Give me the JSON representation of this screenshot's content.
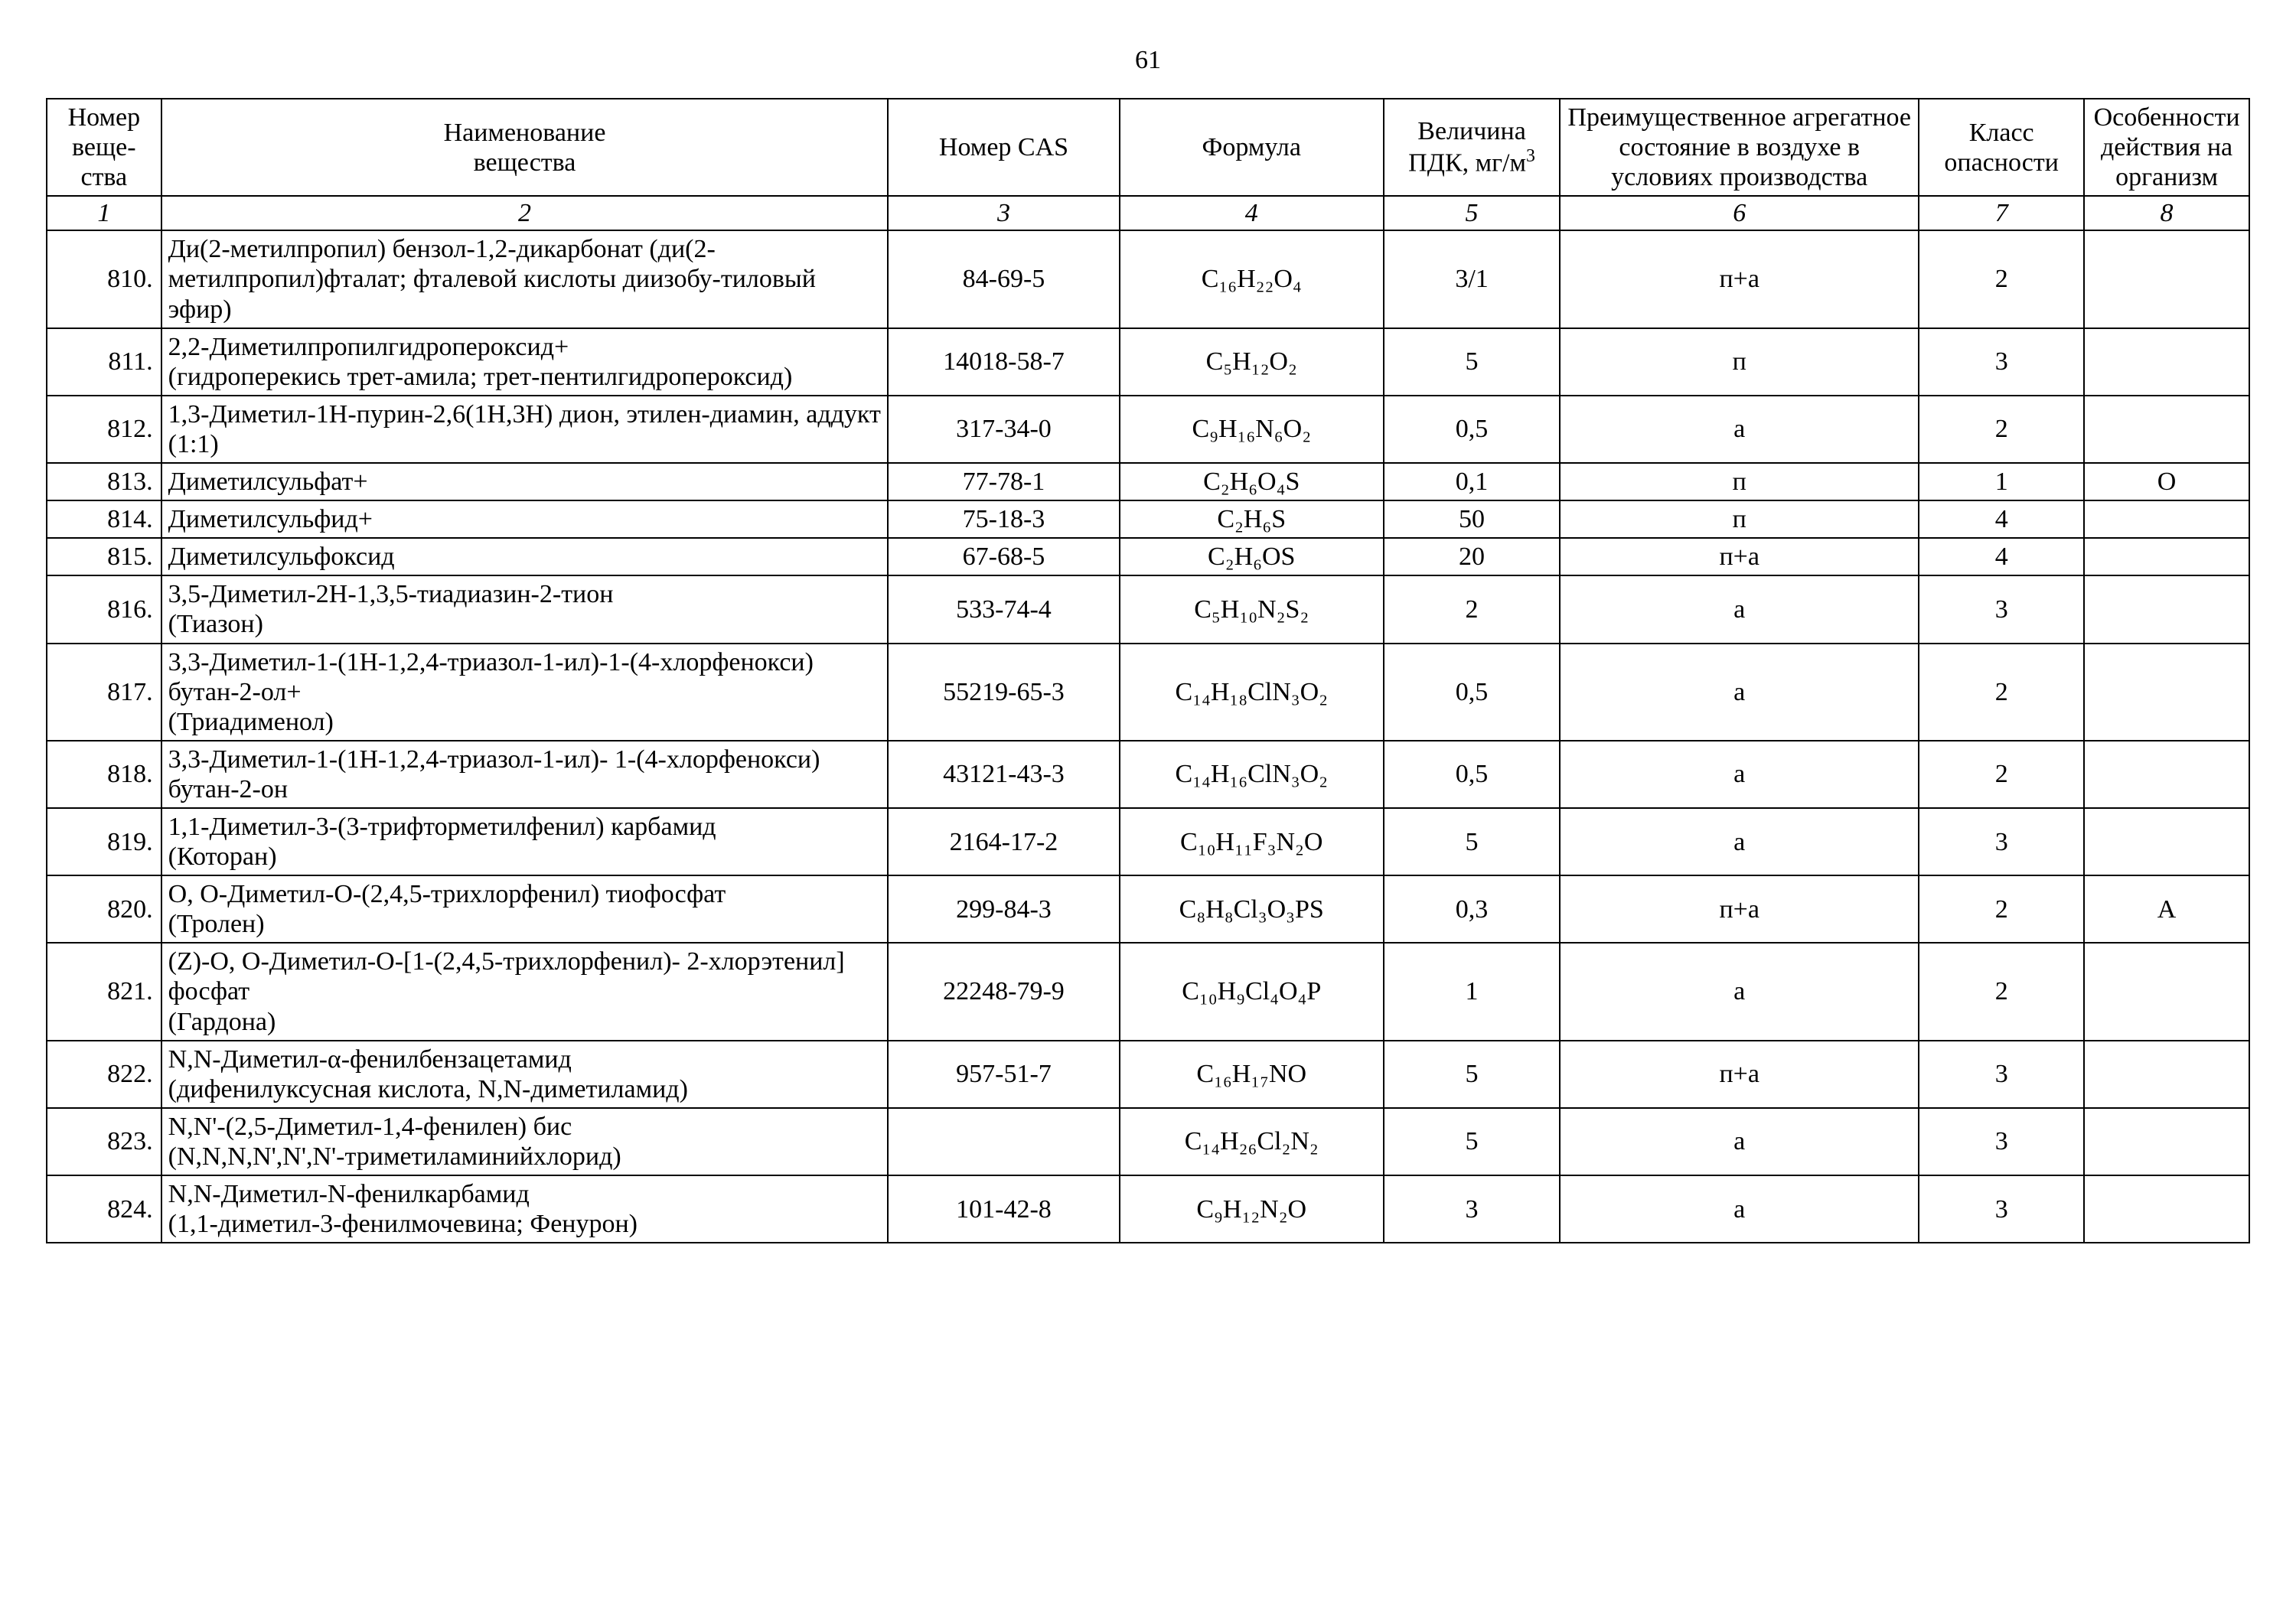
{
  "page_number": "61",
  "table": {
    "col_widths_pct": [
      5.2,
      33.0,
      10.5,
      12.0,
      8.0,
      16.3,
      7.5,
      7.5
    ],
    "headers": [
      "Номер веще-ства",
      "Наименование\nвещества",
      "Номер CAS",
      "Формула",
      "Величина ПДК, мг/м³",
      "Преимущественное агрегатное состояние в воздухе в условиях производства",
      "Класс опасности",
      "Особенности действия на организм"
    ],
    "header_fontsize_pt": 26,
    "cell_fontsize_pt": 26,
    "border_color": "#000000",
    "background_color": "#ffffff",
    "colnum_row": [
      "1",
      "2",
      "3",
      "4",
      "5",
      "6",
      "7",
      "8"
    ],
    "rows": [
      {
        "num": "810.",
        "name": "Ди(2-метилпропил) бензол-1,2-дикарбонат  (ди(2-метилпропил)фталат; фталевой кислоты  диизобу-тиловый эфир)",
        "cas": "84-69-5",
        "formula": "C₁₆H₂₂O₄",
        "pdk": "3/1",
        "state": "п+а",
        "hazard": "2",
        "effect": ""
      },
      {
        "num": "811.",
        "name": "2,2-Диметилпропилгидропероксид+\n(гидроперекись трет-амила; трет-пентилгидропероксид)",
        "cas": "14018-58-7",
        "formula": "C₅H₁₂O₂",
        "pdk": "5",
        "state": "п",
        "hazard": "3",
        "effect": ""
      },
      {
        "num": "812.",
        "name": "1,3-Диметил-1Н-пурин-2,6(1Н,3Н) дион, этилен-диамин, аддукт (1:1)",
        "cas": "317-34-0",
        "formula": "C₉H₁₆N₆O₂",
        "pdk": "0,5",
        "state": "а",
        "hazard": "2",
        "effect": ""
      },
      {
        "num": "813.",
        "name": "Диметилсульфат+",
        "cas": "77-78-1",
        "formula": "C₂H₆O₄S",
        "pdk": "0,1",
        "state": "п",
        "hazard": "1",
        "effect": "О"
      },
      {
        "num": "814.",
        "name": "Диметилсульфид+",
        "cas": "75-18-3",
        "formula": "C₂H₆S",
        "pdk": "50",
        "state": "п",
        "hazard": "4",
        "effect": ""
      },
      {
        "num": "815.",
        "name": "Диметилсульфоксид",
        "cas": "67-68-5",
        "formula": "C₂H₆OS",
        "pdk": "20",
        "state": "п+а",
        "hazard": "4",
        "effect": ""
      },
      {
        "num": "816.",
        "name": "3,5-Диметил-2Н-1,3,5-тиадиазин-2-тион\n(Тиазон)",
        "cas": "533-74-4",
        "formula": "C₅H₁₀N₂S₂",
        "pdk": "2",
        "state": "а",
        "hazard": "3",
        "effect": ""
      },
      {
        "num": "817.",
        "name": "3,3-Диметил-1-(1Н-1,2,4-триазол-1-ил)-1-(4-хлорфенокси) бутан-2-ол+\n(Триадименол)",
        "cas": "55219-65-3",
        "formula": "C₁₄H₁₈ClN₃O₂",
        "pdk": "0,5",
        "state": "а",
        "hazard": "2",
        "effect": ""
      },
      {
        "num": "818.",
        "name": "3,3-Диметил-1-(1Н-1,2,4-триазол-1-ил)- 1-(4-хлорфенокси) бутан-2-он",
        "cas": "43121-43-3",
        "formula": "C₁₄H₁₆ClN₃O₂",
        "pdk": "0,5",
        "state": "а",
        "hazard": "2",
        "effect": ""
      },
      {
        "num": "819.",
        "name": "1,1-Диметил-3-(3-трифторметилфенил) карбамид\n(Которан)",
        "cas": "2164-17-2",
        "formula": "C₁₀H₁₁F₃N₂O",
        "pdk": "5",
        "state": "а",
        "hazard": "3",
        "effect": ""
      },
      {
        "num": "820.",
        "name": "О, О-Диметил-О-(2,4,5-трихлорфенил) тиофосфат\n(Тролен)",
        "cas": "299-84-3",
        "formula": "C₈H₈Cl₃O₃PS",
        "pdk": "0,3",
        "state": "п+а",
        "hazard": "2",
        "effect": "А"
      },
      {
        "num": "821.",
        "name": "(Z)-О, О-Диметил-О-[1-(2,4,5-трихлорфенил)- 2-хлорэтенил] фосфат\n(Гардона)",
        "cas": "22248-79-9",
        "formula": "C₁₀H₉Cl₄O₄P",
        "pdk": "1",
        "state": "а",
        "hazard": "2",
        "effect": ""
      },
      {
        "num": "822.",
        "name": "N,N-Диметил-α-фенилбензацетамид\n(дифенилуксусная кислота, N,N-диметиламид)",
        "cas": "957-51-7",
        "formula": "C₁₆H₁₇NO",
        "pdk": "5",
        "state": "п+а",
        "hazard": "3",
        "effect": ""
      },
      {
        "num": "823.",
        "name": "N,N'-(2,5-Диметил-1,4-фенилен) бис\n(N,N,N,N',N',N'-триметиламинийхлорид)",
        "cas": "",
        "formula": "C₁₄H₂₆Cl₂N₂",
        "pdk": "5",
        "state": "а",
        "hazard": "3",
        "effect": ""
      },
      {
        "num": "824.",
        "name": "N,N-Диметил-N-фенилкарбамид\n(1,1-диметил-3-фенилмочевина; Фенурон)",
        "cas": "101-42-8",
        "formula": "C₉H₁₂N₂O",
        "pdk": "3",
        "state": "а",
        "hazard": "3",
        "effect": ""
      }
    ]
  }
}
